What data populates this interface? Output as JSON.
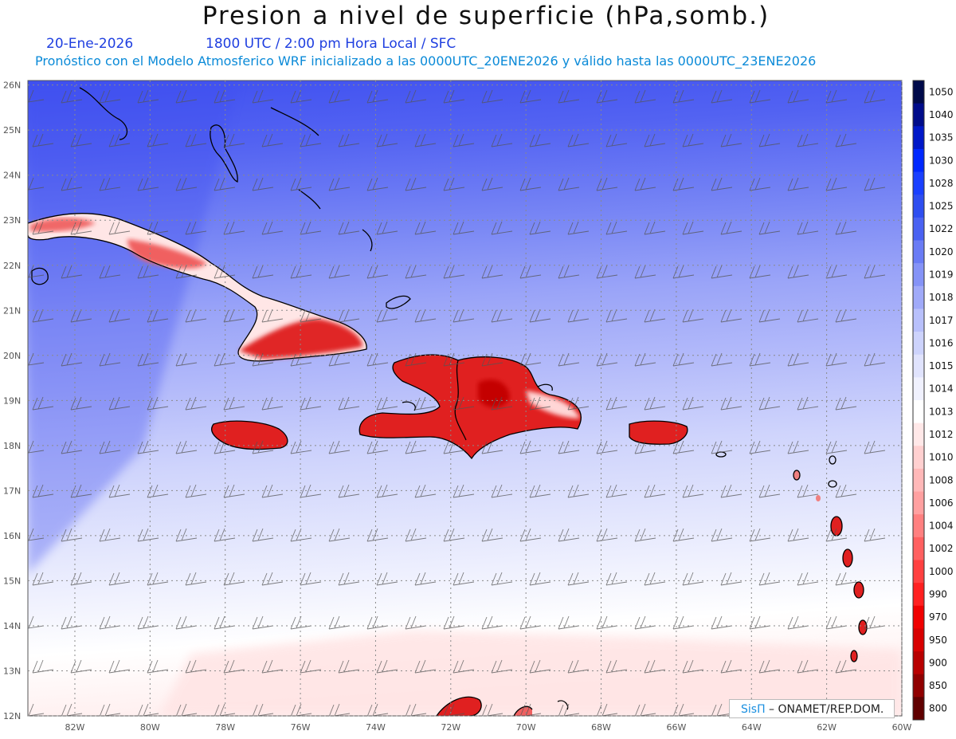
{
  "header": {
    "title": "Presion a nivel de superficie (hPa,somb.)",
    "date": "20-Ene-2026",
    "time_info": "1800 UTC / 2:00 pm Hora Local / SFC",
    "model_info": "Pronóstico con el Modelo Atmosferico WRF inicializado a las 0000UTC_20ENE2026 y válido hasta las  0000UTC_23ENE2026"
  },
  "map": {
    "lat_labels": [
      "26N",
      "25N",
      "24N",
      "23N",
      "22N",
      "21N",
      "20N",
      "19N",
      "18N",
      "17N",
      "16N",
      "15N",
      "14N",
      "13N",
      "12N"
    ],
    "lon_labels": [
      "82W",
      "80W",
      "78W",
      "76W",
      "74W",
      "72W",
      "70W",
      "68W",
      "66W",
      "64W",
      "62W",
      "60W"
    ],
    "lon_range": [
      -83.25,
      -60
    ],
    "lat_range": [
      12,
      26.1
    ],
    "land_high_color": "#e02020"
  },
  "colorbar": {
    "levels": [
      "1050",
      "1040",
      "1035",
      "1030",
      "1028",
      "1025",
      "1022",
      "1020",
      "1019",
      "1018",
      "1017",
      "1016",
      "1015",
      "1014",
      "1013",
      "1012",
      "1010",
      "1008",
      "1006",
      "1004",
      "1002",
      "1000",
      "990",
      "970",
      "950",
      "900",
      "850",
      "800"
    ],
    "colors": [
      "#000a4a",
      "#000c8a",
      "#0018c8",
      "#0028ff",
      "#1a40ff",
      "#2e4ef0",
      "#4a62f2",
      "#6a7cf5",
      "#8593f7",
      "#a0aaf9",
      "#b8c0fb",
      "#cdd3fc",
      "#e0e3fd",
      "#f0f1fe",
      "#ffffff",
      "#ffe8e8",
      "#ffd0d0",
      "#ffb8b8",
      "#ffa0a0",
      "#ff8080",
      "#ff6060",
      "#ff4040",
      "#ff2020",
      "#f00000",
      "#d80000",
      "#b80000",
      "#900000",
      "#600000"
    ]
  },
  "credit": {
    "logo": "SisΠ",
    "text": " – ONAMET/REP.DOM."
  }
}
